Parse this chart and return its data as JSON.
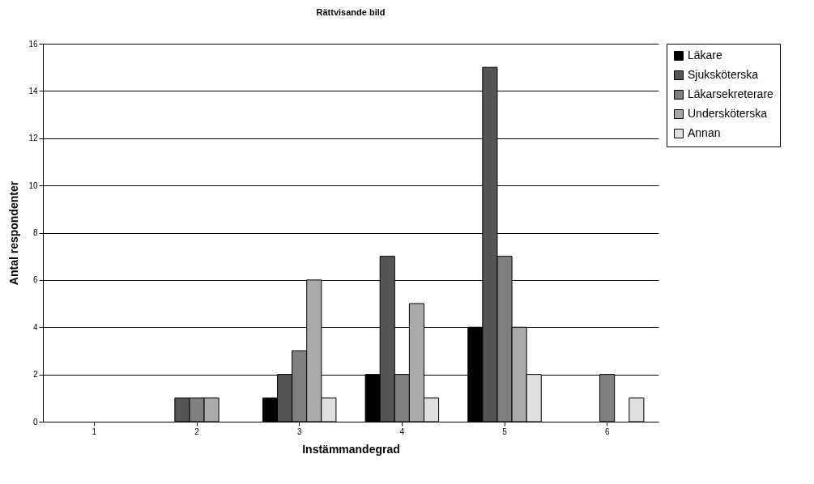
{
  "chart_data": {
    "type": "bar",
    "title": "Rättvisande bild",
    "xlabel": "Instämmandegrad",
    "ylabel": "Antal respondenter",
    "categories": [
      "1",
      "2",
      "3",
      "4",
      "5",
      "6"
    ],
    "series": [
      {
        "name": "Läkare",
        "color": "#000000",
        "values": [
          0,
          0,
          1,
          2,
          4,
          0
        ]
      },
      {
        "name": "Sjuksköterska",
        "color": "#555555",
        "values": [
          0,
          1,
          2,
          7,
          15,
          0
        ]
      },
      {
        "name": "Läkarsekreterare",
        "color": "#808080",
        "values": [
          0,
          1,
          3,
          2,
          7,
          2
        ]
      },
      {
        "name": "Undersköterska",
        "color": "#aaaaaa",
        "values": [
          0,
          1,
          6,
          5,
          4,
          0
        ]
      },
      {
        "name": "Annan",
        "color": "#e0e0e0",
        "values": [
          0,
          0,
          1,
          1,
          2,
          1
        ]
      }
    ],
    "ylim": [
      0,
      16
    ],
    "yticks": [
      0,
      2,
      4,
      6,
      8,
      10,
      12,
      14,
      16
    ],
    "grid": "y",
    "legend": "right"
  }
}
